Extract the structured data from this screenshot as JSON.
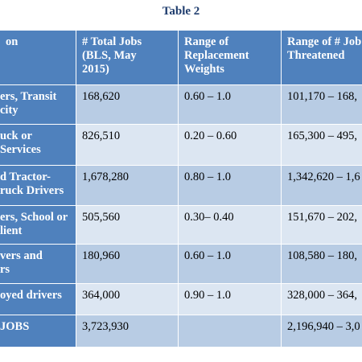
{
  "title": "Table 2",
  "table": {
    "header": [
      [
        "on"
      ],
      [
        "# Total Jobs",
        "(BLS, May",
        "2015)"
      ],
      [
        "Range of",
        "Replacement",
        "Weights"
      ],
      [
        "Range of # Job",
        "Threatened"
      ]
    ],
    "rows": [
      [
        [
          "ers, Transit",
          "city"
        ],
        [
          "168,620"
        ],
        [
          "0.60 – 1.0"
        ],
        [
          "101,170 – 168,"
        ]
      ],
      [
        [
          "uck or",
          "Services"
        ],
        [
          "826,510"
        ],
        [
          "0.20 – 0.60"
        ],
        [
          "165,300 – 495,"
        ]
      ],
      [
        [
          "d Tractor-",
          "ruck Drivers"
        ],
        [
          "1,678,280"
        ],
        [
          "0.80 – 1.0"
        ],
        [
          "1,342,620 – 1,6"
        ]
      ],
      [
        [
          "ers, School or",
          "lient"
        ],
        [
          "505,560"
        ],
        [
          "0.30– 0.40"
        ],
        [
          "151,670 – 202,"
        ]
      ],
      [
        [
          "vers and",
          "rs"
        ],
        [
          "180,960"
        ],
        [
          "0.60 – 1.0"
        ],
        [
          "108,580 – 180,"
        ]
      ],
      [
        [
          "oyed drivers"
        ],
        [
          "364,000"
        ],
        [
          "0.90 – 1.0"
        ],
        [
          "328,000 – 364,"
        ]
      ],
      [
        [
          "JOBS"
        ],
        [
          "3,723,930"
        ],
        [],
        [
          "2,196,940 – 3,0"
        ]
      ]
    ]
  }
}
